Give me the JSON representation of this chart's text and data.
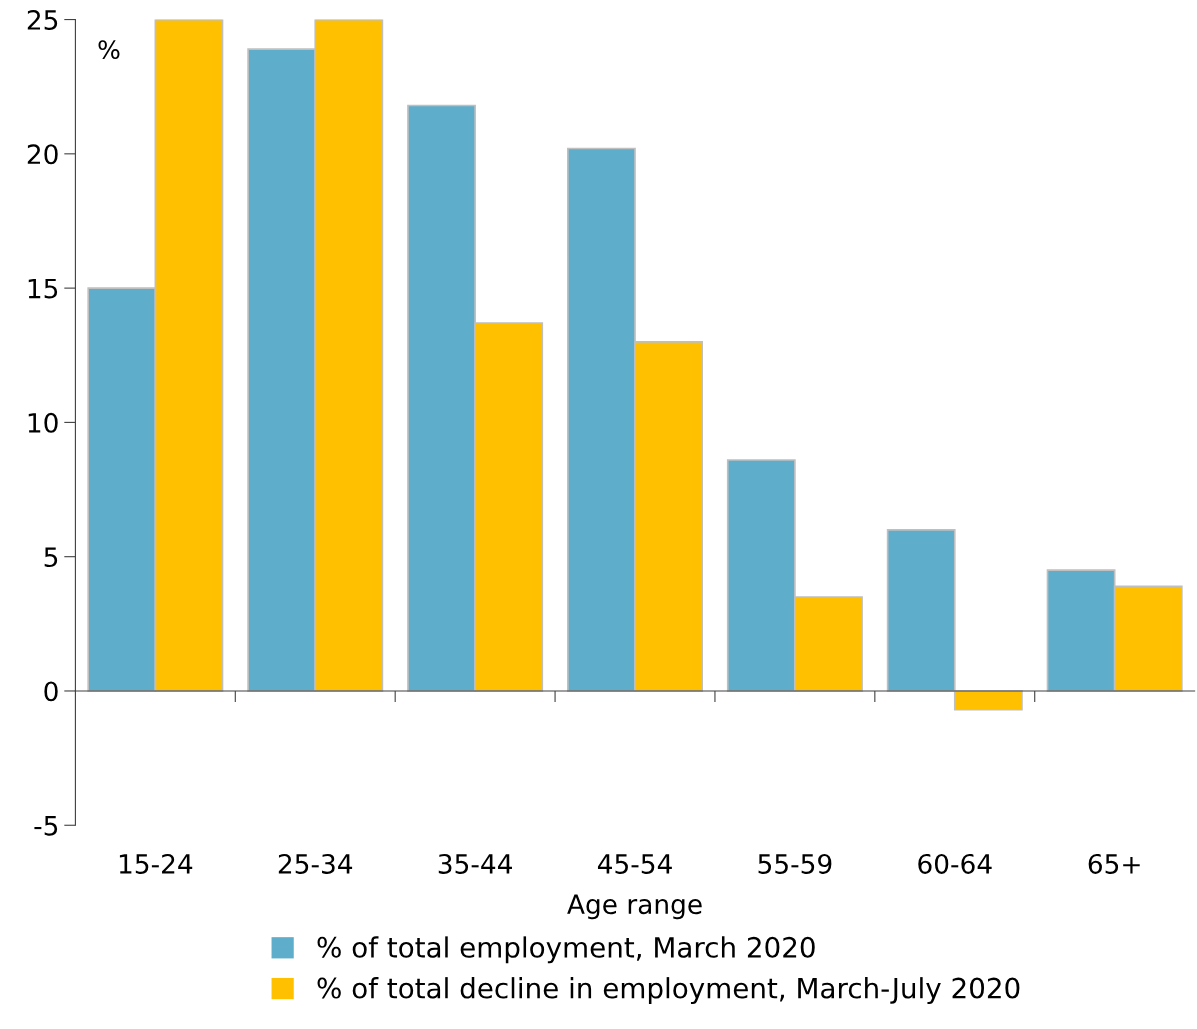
{
  "chart_data": {
    "type": "bar",
    "xlabel": "Age range",
    "annotations": [
      "%"
    ],
    "categories": [
      "15-24",
      "25-34",
      "35-44",
      "45-54",
      "55-59",
      "60-64",
      "65+"
    ],
    "series": [
      {
        "name": "% of total employment, March 2020",
        "color": "#5eadcb",
        "values": [
          15.0,
          23.9,
          21.8,
          20.2,
          8.6,
          6.0,
          4.5
        ]
      },
      {
        "name": "% of total decline in employment, March-July 2020",
        "color": "#ffc000",
        "values": [
          25,
          25,
          13.7,
          13.0,
          3.5,
          -0.7,
          3.9
        ]
      }
    ],
    "ylim": [
      -5,
      25
    ],
    "yticks": [
      -5,
      0,
      5,
      10,
      15,
      20,
      25
    ],
    "legend": "bottom"
  }
}
